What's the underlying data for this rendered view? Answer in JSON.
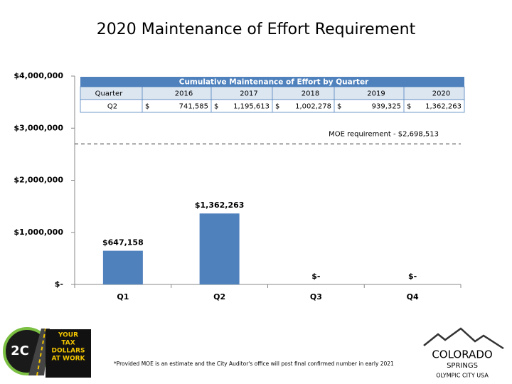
{
  "title": "2020 Maintenance of Effort Requirement",
  "chart_data": {
    "type": "bar",
    "categories": [
      "Q1",
      "Q2",
      "Q3",
      "Q4"
    ],
    "values": [
      647158,
      1362263,
      0,
      0
    ],
    "value_labels": [
      "$647,158",
      "$1,362,263",
      "$-",
      "$-"
    ],
    "color": "#4f81bd",
    "ylim": [
      0,
      4000000
    ],
    "yticks": [
      {
        "value": 0,
        "label": "$-"
      },
      {
        "value": 1000000,
        "label": "$1,000,000"
      },
      {
        "value": 2000000,
        "label": "$2,000,000"
      },
      {
        "value": 3000000,
        "label": "$3,000,000"
      },
      {
        "value": 4000000,
        "label": "$4,000,000"
      }
    ],
    "reference_line": {
      "value": 2698513,
      "label": "MOE requirement - $2,698,513",
      "style": "dashed"
    },
    "table": {
      "title": "Cumulative Maintenance of Effort by Quarter",
      "columns": [
        "Quarter",
        "2016",
        "2017",
        "2018",
        "2019",
        "2020"
      ],
      "currency": "$",
      "rows": [
        [
          "Q2",
          "741,585",
          "1,195,613",
          "1,002,278",
          "939,325",
          "1,362,263"
        ]
      ]
    }
  },
  "footnote": "*Provided MOE is an estimate and the City Auditor's office will post final confirmed number in early 2021",
  "logos": {
    "left_badge": "2C",
    "left_sign": [
      "YOUR",
      "TAX",
      "DOLLARS",
      "AT WORK"
    ],
    "right_name": [
      "COLORADO",
      "SPRINGS"
    ],
    "right_tagline": "OLYMPIC CITY USA"
  }
}
